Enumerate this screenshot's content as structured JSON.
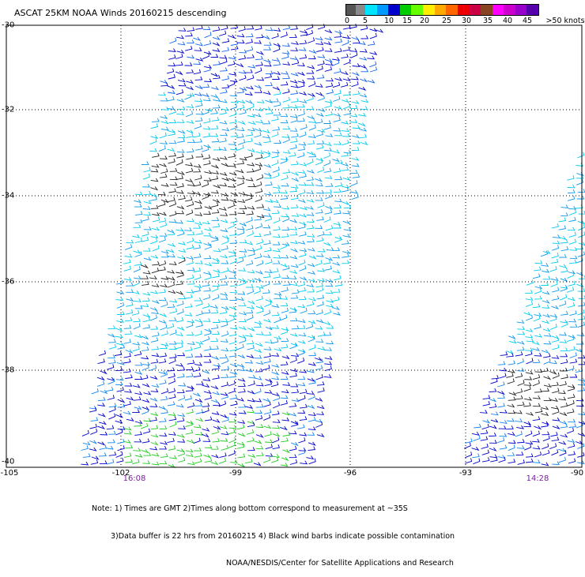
{
  "title": "ASCAT 25KM NOAA Winds 20160215 descending",
  "legend": {
    "colors": [
      "#555555",
      "#8a8a8a",
      "#00e5ff",
      "#0099ff",
      "#0000cc",
      "#00cc00",
      "#66ff00",
      "#ffee00",
      "#ffaa00",
      "#ff6600",
      "#ee0000",
      "#cc0044",
      "#884422",
      "#ff00ff",
      "#cc00cc",
      "#9900cc",
      "#5500aa"
    ],
    "labels": [
      "0",
      "5",
      "10",
      "15",
      "20",
      "25",
      "30",
      "35",
      "40",
      "45",
      ">50 knots"
    ]
  },
  "axes": {
    "lat_labels": [
      "-30",
      "-32",
      "-34",
      "-36",
      "-38",
      "-40"
    ],
    "lon_labels": [
      "-105",
      "-102",
      "-99",
      "-96",
      "-93",
      "-90"
    ]
  },
  "pass_times": [
    "16:08",
    "14:28"
  ],
  "notes": [
    "Note: 1) Times are GMT 2)Times along bottom correspond to measurement at ~35S",
    "3)Data buffer is 22 hrs from 20160215 4) Black wind barbs indicate possible contamination",
    "NOAA/NESDIS/Center for Satellite Applications and Research"
  ]
}
